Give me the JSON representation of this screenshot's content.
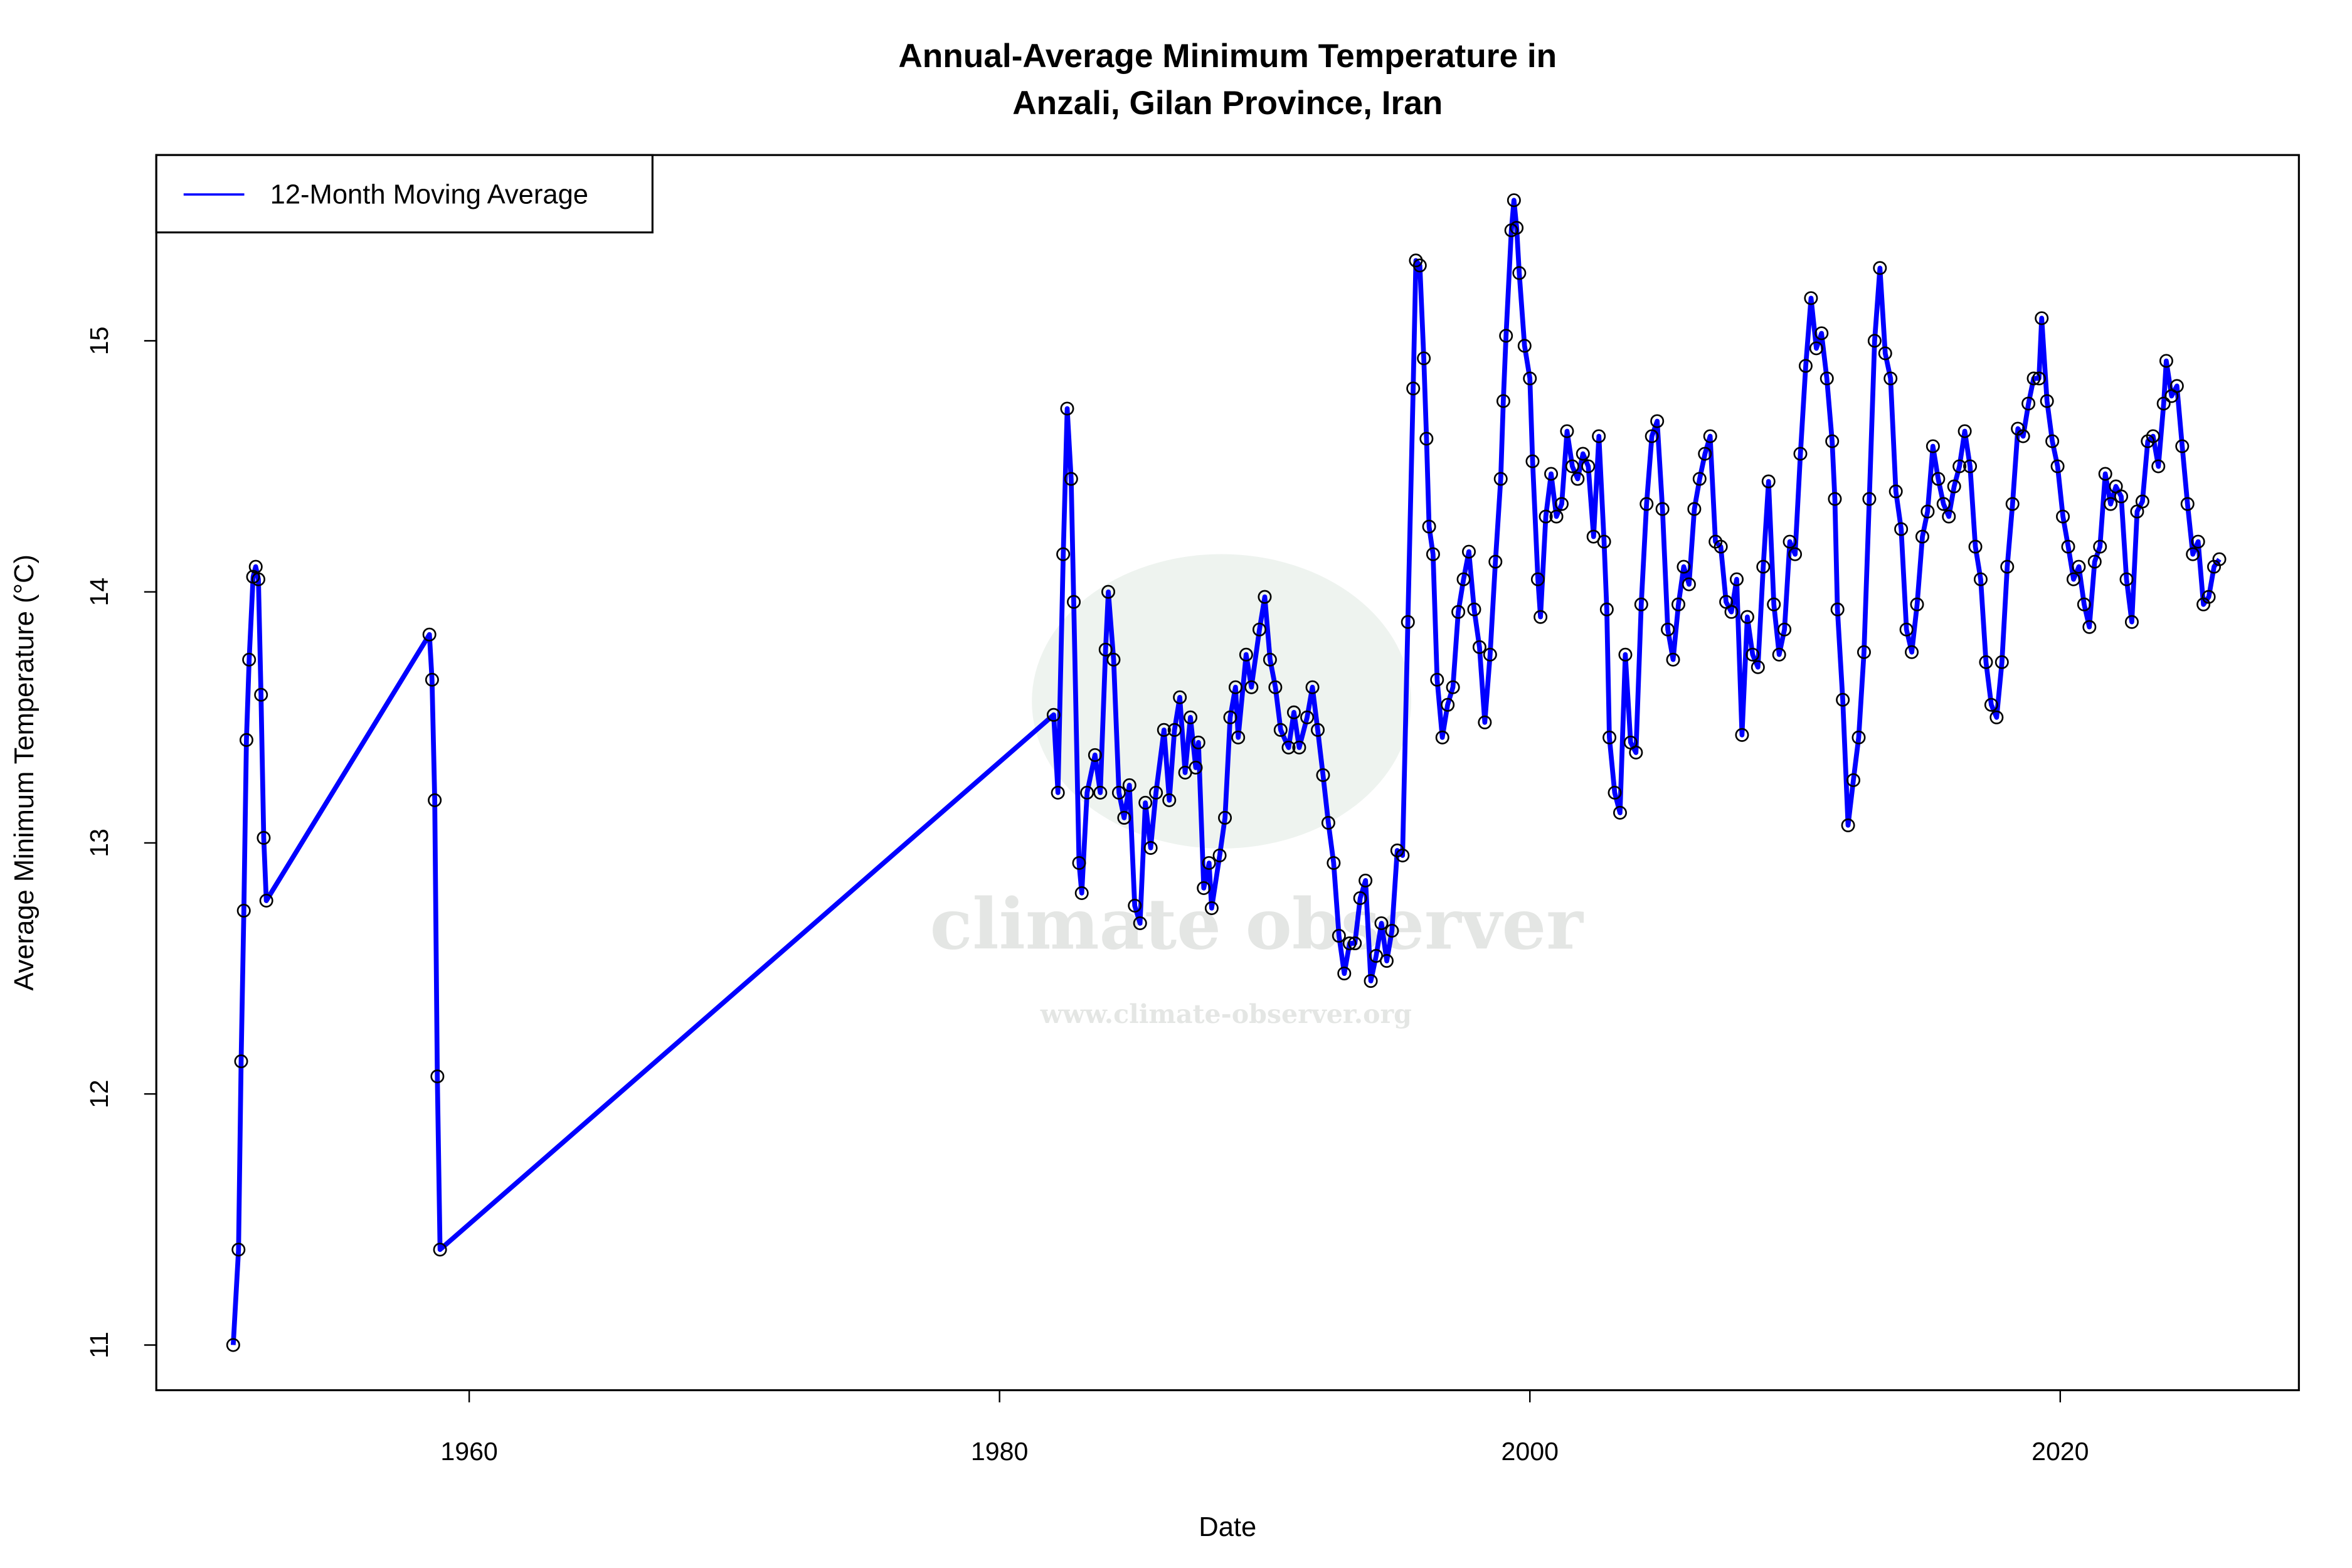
{
  "chart_data": {
    "type": "line",
    "title_lines": [
      "Annual-Average Minimum Temperature in",
      "Anzali, Gilan Province, Iran"
    ],
    "xlabel": "Date",
    "ylabel": "Average Minimum Temperature (°C)",
    "xlim": [
      1948.2,
      2029.0
    ],
    "ylim": [
      10.82,
      15.74
    ],
    "xticks": [
      1960,
      1980,
      2000,
      2020
    ],
    "yticks": [
      11,
      12,
      13,
      14,
      15
    ],
    "grid": false,
    "legend": {
      "placement": "top-left",
      "entries": [
        {
          "name": "12-Month Moving Average",
          "color": "#0000ff"
        }
      ]
    },
    "series": [
      {
        "name": "12-Month Moving Average",
        "color": "#0000ff",
        "markers": "open-circle",
        "points": [
          [
            1951.1,
            11.0
          ],
          [
            1951.3,
            11.38
          ],
          [
            1951.4,
            12.13
          ],
          [
            1951.5,
            12.73
          ],
          [
            1951.6,
            13.41
          ],
          [
            1951.7,
            13.73
          ],
          [
            1951.85,
            14.06
          ],
          [
            1951.95,
            14.1
          ],
          [
            1952.05,
            14.05
          ],
          [
            1952.15,
            13.59
          ],
          [
            1952.25,
            13.02
          ],
          [
            1952.35,
            12.77
          ],
          [
            1958.5,
            13.83
          ],
          [
            1958.6,
            13.65
          ],
          [
            1958.7,
            13.17
          ],
          [
            1958.8,
            12.07
          ],
          [
            1958.9,
            11.38
          ],
          [
            1982.04,
            13.51
          ],
          [
            1982.2,
            13.2
          ],
          [
            1982.4,
            14.15
          ],
          [
            1982.55,
            14.73
          ],
          [
            1982.7,
            14.45
          ],
          [
            1982.8,
            13.96
          ],
          [
            1983.0,
            12.92
          ],
          [
            1983.1,
            12.8
          ],
          [
            1983.3,
            13.2
          ],
          [
            1983.6,
            13.35
          ],
          [
            1983.8,
            13.2
          ],
          [
            1984.0,
            13.77
          ],
          [
            1984.1,
            14.0
          ],
          [
            1984.3,
            13.73
          ],
          [
            1984.5,
            13.2
          ],
          [
            1984.7,
            13.1
          ],
          [
            1984.9,
            13.23
          ],
          [
            1985.1,
            12.75
          ],
          [
            1985.3,
            12.68
          ],
          [
            1985.5,
            13.16
          ],
          [
            1985.7,
            12.98
          ],
          [
            1985.9,
            13.2
          ],
          [
            1986.2,
            13.45
          ],
          [
            1986.4,
            13.17
          ],
          [
            1986.6,
            13.45
          ],
          [
            1986.8,
            13.58
          ],
          [
            1987.0,
            13.28
          ],
          [
            1987.2,
            13.5
          ],
          [
            1987.4,
            13.3
          ],
          [
            1987.5,
            13.4
          ],
          [
            1987.7,
            12.82
          ],
          [
            1987.9,
            12.92
          ],
          [
            1988.0,
            12.74
          ],
          [
            1988.3,
            12.95
          ],
          [
            1988.5,
            13.1
          ],
          [
            1988.7,
            13.5
          ],
          [
            1988.9,
            13.62
          ],
          [
            1989.0,
            13.42
          ],
          [
            1989.3,
            13.75
          ],
          [
            1989.5,
            13.62
          ],
          [
            1989.8,
            13.85
          ],
          [
            1990.0,
            13.98
          ],
          [
            1990.2,
            13.73
          ],
          [
            1990.4,
            13.62
          ],
          [
            1990.6,
            13.45
          ],
          [
            1990.9,
            13.38
          ],
          [
            1991.1,
            13.52
          ],
          [
            1991.3,
            13.38
          ],
          [
            1991.6,
            13.5
          ],
          [
            1991.8,
            13.62
          ],
          [
            1992.0,
            13.45
          ],
          [
            1992.2,
            13.27
          ],
          [
            1992.4,
            13.08
          ],
          [
            1992.6,
            12.92
          ],
          [
            1992.8,
            12.63
          ],
          [
            1993.0,
            12.48
          ],
          [
            1993.2,
            12.6
          ],
          [
            1993.4,
            12.6
          ],
          [
            1993.6,
            12.78
          ],
          [
            1993.8,
            12.85
          ],
          [
            1994.0,
            12.45
          ],
          [
            1994.2,
            12.55
          ],
          [
            1994.4,
            12.68
          ],
          [
            1994.6,
            12.53
          ],
          [
            1994.8,
            12.65
          ],
          [
            1995.0,
            12.97
          ],
          [
            1995.2,
            12.95
          ],
          [
            1995.4,
            13.88
          ],
          [
            1995.6,
            14.81
          ],
          [
            1995.7,
            15.32
          ],
          [
            1995.85,
            15.3
          ],
          [
            1996.0,
            14.93
          ],
          [
            1996.1,
            14.61
          ],
          [
            1996.2,
            14.26
          ],
          [
            1996.35,
            14.15
          ],
          [
            1996.5,
            13.65
          ],
          [
            1996.7,
            13.42
          ],
          [
            1996.9,
            13.55
          ],
          [
            1997.1,
            13.62
          ],
          [
            1997.3,
            13.92
          ],
          [
            1997.5,
            14.05
          ],
          [
            1997.7,
            14.16
          ],
          [
            1997.9,
            13.93
          ],
          [
            1998.1,
            13.78
          ],
          [
            1998.3,
            13.48
          ],
          [
            1998.5,
            13.75
          ],
          [
            1998.7,
            14.12
          ],
          [
            1998.9,
            14.45
          ],
          [
            1999.0,
            14.76
          ],
          [
            1999.1,
            15.02
          ],
          [
            1999.3,
            15.44
          ],
          [
            1999.4,
            15.56
          ],
          [
            1999.5,
            15.45
          ],
          [
            1999.6,
            15.27
          ],
          [
            1999.8,
            14.98
          ],
          [
            2000.0,
            14.85
          ],
          [
            2000.1,
            14.52
          ],
          [
            2000.3,
            14.05
          ],
          [
            2000.4,
            13.9
          ],
          [
            2000.6,
            14.3
          ],
          [
            2000.8,
            14.47
          ],
          [
            2001.0,
            14.3
          ],
          [
            2001.2,
            14.35
          ],
          [
            2001.4,
            14.64
          ],
          [
            2001.6,
            14.5
          ],
          [
            2001.8,
            14.45
          ],
          [
            2002.0,
            14.55
          ],
          [
            2002.2,
            14.5
          ],
          [
            2002.4,
            14.22
          ],
          [
            2002.6,
            14.62
          ],
          [
            2002.8,
            14.2
          ],
          [
            2002.9,
            13.93
          ],
          [
            2003.0,
            13.42
          ],
          [
            2003.2,
            13.2
          ],
          [
            2003.4,
            13.12
          ],
          [
            2003.6,
            13.75
          ],
          [
            2003.8,
            13.4
          ],
          [
            2004.0,
            13.36
          ],
          [
            2004.2,
            13.95
          ],
          [
            2004.4,
            14.35
          ],
          [
            2004.6,
            14.62
          ],
          [
            2004.8,
            14.68
          ],
          [
            2005.0,
            14.33
          ],
          [
            2005.2,
            13.85
          ],
          [
            2005.4,
            13.73
          ],
          [
            2005.6,
            13.95
          ],
          [
            2005.8,
            14.1
          ],
          [
            2006.0,
            14.03
          ],
          [
            2006.2,
            14.33
          ],
          [
            2006.4,
            14.45
          ],
          [
            2006.6,
            14.55
          ],
          [
            2006.8,
            14.62
          ],
          [
            2007.0,
            14.2
          ],
          [
            2007.2,
            14.18
          ],
          [
            2007.4,
            13.96
          ],
          [
            2007.6,
            13.92
          ],
          [
            2007.8,
            14.05
          ],
          [
            2008.0,
            13.43
          ],
          [
            2008.2,
            13.9
          ],
          [
            2008.4,
            13.75
          ],
          [
            2008.6,
            13.7
          ],
          [
            2008.8,
            14.1
          ],
          [
            2009.0,
            14.44
          ],
          [
            2009.2,
            13.95
          ],
          [
            2009.4,
            13.75
          ],
          [
            2009.6,
            13.85
          ],
          [
            2009.8,
            14.2
          ],
          [
            2010.0,
            14.15
          ],
          [
            2010.2,
            14.55
          ],
          [
            2010.4,
            14.9
          ],
          [
            2010.6,
            15.17
          ],
          [
            2010.8,
            14.97
          ],
          [
            2011.0,
            15.03
          ],
          [
            2011.2,
            14.85
          ],
          [
            2011.4,
            14.6
          ],
          [
            2011.5,
            14.37
          ],
          [
            2011.6,
            13.93
          ],
          [
            2011.8,
            13.57
          ],
          [
            2012.0,
            13.07
          ],
          [
            2012.2,
            13.25
          ],
          [
            2012.4,
            13.42
          ],
          [
            2012.6,
            13.76
          ],
          [
            2012.8,
            14.37
          ],
          [
            2013.0,
            15.0
          ],
          [
            2013.2,
            15.29
          ],
          [
            2013.4,
            14.95
          ],
          [
            2013.6,
            14.85
          ],
          [
            2013.8,
            14.4
          ],
          [
            2014.0,
            14.25
          ],
          [
            2014.2,
            13.85
          ],
          [
            2014.4,
            13.76
          ],
          [
            2014.6,
            13.95
          ],
          [
            2014.8,
            14.22
          ],
          [
            2015.0,
            14.32
          ],
          [
            2015.2,
            14.58
          ],
          [
            2015.4,
            14.45
          ],
          [
            2015.6,
            14.35
          ],
          [
            2015.8,
            14.3
          ],
          [
            2016.0,
            14.42
          ],
          [
            2016.2,
            14.5
          ],
          [
            2016.4,
            14.64
          ],
          [
            2016.6,
            14.5
          ],
          [
            2016.8,
            14.18
          ],
          [
            2017.0,
            14.05
          ],
          [
            2017.2,
            13.72
          ],
          [
            2017.4,
            13.55
          ],
          [
            2017.6,
            13.5
          ],
          [
            2017.8,
            13.72
          ],
          [
            2018.0,
            14.1
          ],
          [
            2018.2,
            14.35
          ],
          [
            2018.4,
            14.65
          ],
          [
            2018.6,
            14.62
          ],
          [
            2018.8,
            14.75
          ],
          [
            2019.0,
            14.85
          ],
          [
            2019.2,
            14.85
          ],
          [
            2019.3,
            15.09
          ],
          [
            2019.5,
            14.76
          ],
          [
            2019.7,
            14.6
          ],
          [
            2019.9,
            14.5
          ],
          [
            2020.1,
            14.3
          ],
          [
            2020.3,
            14.18
          ],
          [
            2020.5,
            14.05
          ],
          [
            2020.7,
            14.1
          ],
          [
            2020.9,
            13.95
          ],
          [
            2021.1,
            13.86
          ],
          [
            2021.3,
            14.12
          ],
          [
            2021.5,
            14.18
          ],
          [
            2021.7,
            14.47
          ],
          [
            2021.9,
            14.35
          ],
          [
            2022.1,
            14.42
          ],
          [
            2022.3,
            14.38
          ],
          [
            2022.5,
            14.05
          ],
          [
            2022.7,
            13.88
          ],
          [
            2022.9,
            14.32
          ],
          [
            2023.1,
            14.36
          ],
          [
            2023.3,
            14.6
          ],
          [
            2023.5,
            14.62
          ],
          [
            2023.7,
            14.5
          ],
          [
            2023.9,
            14.75
          ],
          [
            2024.0,
            14.92
          ],
          [
            2024.2,
            14.78
          ],
          [
            2024.4,
            14.82
          ],
          [
            2024.6,
            14.58
          ],
          [
            2024.8,
            14.35
          ],
          [
            2025.0,
            14.15
          ],
          [
            2025.2,
            14.2
          ],
          [
            2025.4,
            13.95
          ],
          [
            2025.6,
            13.98
          ],
          [
            2025.8,
            14.1
          ],
          [
            2026.0,
            14.13
          ]
        ]
      }
    ]
  },
  "watermark": {
    "name": "climate observer",
    "url": "www.climate-observer.org"
  }
}
